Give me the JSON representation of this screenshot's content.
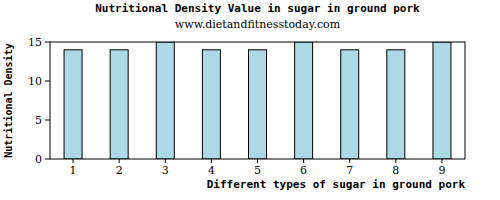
{
  "chart_data": {
    "type": "bar",
    "title": "Nutritional Density Value in sugar in ground pork",
    "subtitle": "www.dietandfitnesstoday.com",
    "x_label": "Different types of sugar in ground pork",
    "y_label": "Nutritional Density",
    "categories": [
      "1",
      "2",
      "3",
      "4",
      "5",
      "6",
      "7",
      "8",
      "9"
    ],
    "values": [
      14,
      14,
      15,
      14,
      14,
      15,
      14,
      14,
      15
    ],
    "color": "#add8e6",
    "ylim": [
      0,
      15
    ],
    "yticks": [
      0,
      5,
      10,
      15
    ],
    "grid": false
  }
}
